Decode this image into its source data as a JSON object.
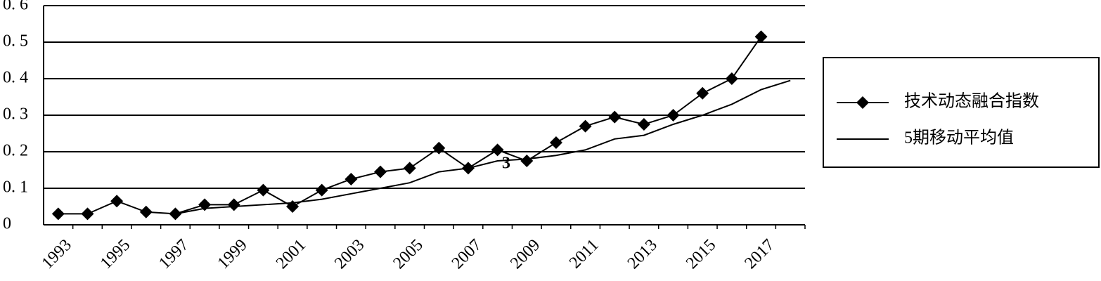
{
  "chart_data": {
    "type": "line",
    "categories": [
      "1993",
      null,
      "1995",
      null,
      "1997",
      null,
      "1999",
      null,
      "2001",
      null,
      "2003",
      null,
      "2005",
      null,
      "2007",
      null,
      "2009",
      null,
      "2011",
      null,
      "2013",
      null,
      "2015",
      null,
      "2017",
      null
    ],
    "series": [
      {
        "name": "技术动态融合指数",
        "color": "#000000",
        "marker": "diamond",
        "values": [
          0.03,
          0.03,
          0.065,
          0.035,
          0.03,
          0.055,
          0.055,
          0.095,
          0.05,
          0.095,
          0.125,
          0.145,
          0.155,
          0.21,
          0.155,
          0.205,
          0.175,
          0.225,
          0.27,
          0.295,
          0.275,
          0.3,
          0.36,
          0.4,
          0.515,
          null
        ]
      },
      {
        "name": "5期移动平均值",
        "color": "#000000",
        "marker": "none",
        "values": [
          null,
          null,
          null,
          null,
          0.03,
          0.045,
          0.05,
          0.055,
          0.06,
          0.07,
          0.085,
          0.1,
          0.115,
          0.145,
          0.155,
          0.175,
          0.18,
          0.19,
          0.205,
          0.235,
          0.245,
          0.275,
          0.3,
          0.33,
          0.37,
          0.395
        ]
      }
    ],
    "ylim": [
      0,
      0.6
    ],
    "yticks": [
      0,
      {
        "value": 0.1,
        "label": "0. 1"
      },
      {
        "value": 0.2,
        "label": "0. 2"
      },
      {
        "value": 0.3,
        "label": "0. 3"
      },
      {
        "value": 0.4,
        "label": "0. 4"
      },
      {
        "value": 0.5,
        "label": "0. 5"
      },
      {
        "value": 0.6,
        "label": "0. 6"
      }
    ],
    "grid": true,
    "legend": "right",
    "annotation": "3"
  }
}
